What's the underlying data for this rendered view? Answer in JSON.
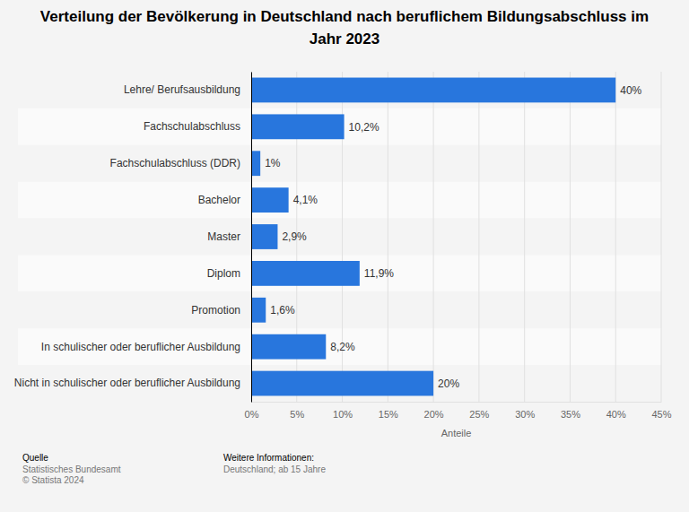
{
  "chart_data": {
    "type": "bar",
    "title": "Verteilung der Bevölkerung in Deutschland nach beruflichem Bildungsabschluss im Jahr 2023",
    "x_label": "Anteile",
    "orientation": "horizontal",
    "categories": [
      "Lehre/ Berufsausbildung",
      "Fachschulabschluss",
      "Fachschulabschluss (DDR)",
      "Bachelor",
      "Master",
      "Diplom",
      "Promotion",
      "In schulischer oder beruflicher Ausbildung",
      "Nicht in schulischer oder beruflicher Ausbildung"
    ],
    "values": [
      40,
      10.2,
      1,
      4.1,
      2.9,
      11.9,
      1.6,
      8.2,
      20
    ],
    "value_labels": [
      "40%",
      "10,2%",
      "1%",
      "4,1%",
      "2,9%",
      "11,9%",
      "1,6%",
      "8,2%",
      "20%"
    ],
    "color": "#2876dd",
    "xlim": [
      0,
      45
    ],
    "xticks": [
      {
        "value": 0,
        "label": "0%"
      },
      {
        "value": 5,
        "label": "5%"
      },
      {
        "value": 10,
        "label": "10%"
      },
      {
        "value": 15,
        "label": "15%"
      },
      {
        "value": 20,
        "label": "20%"
      },
      {
        "value": 25,
        "label": "25%"
      },
      {
        "value": 30,
        "label": "30%"
      },
      {
        "value": 35,
        "label": "35%"
      },
      {
        "value": 40,
        "label": "40%"
      },
      {
        "value": 45,
        "label": "45%"
      }
    ],
    "grid": true,
    "data_labels": true
  },
  "footer": {
    "source_label": "Quelle",
    "source": "Statistisches Bundesamt",
    "copyright": "© Statista 2024",
    "info_label": "Weitere Informationen:",
    "info": "Deutschland; ab 15 Jahre"
  }
}
